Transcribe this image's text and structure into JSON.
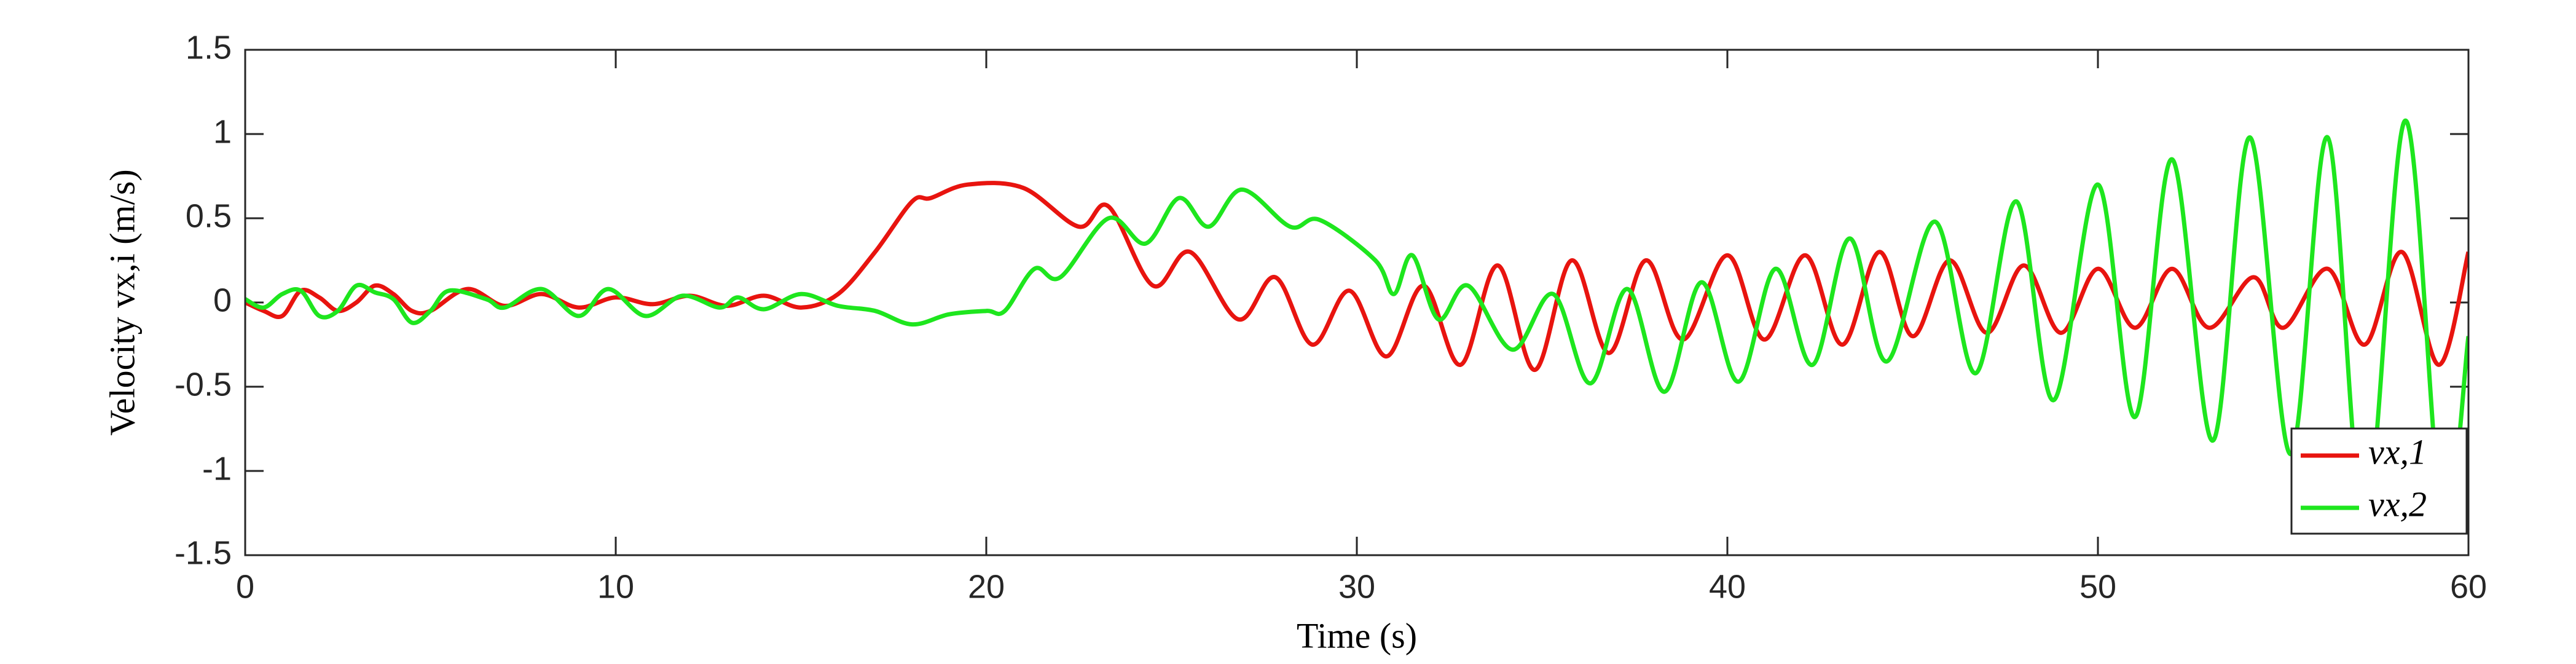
{
  "chart_data": {
    "type": "line",
    "xlabel": "Time (s)",
    "ylabel": "Velocity vx,i (m/s)",
    "xlim": [
      0,
      60
    ],
    "xticks": [
      0,
      10,
      20,
      30,
      40,
      50,
      60
    ],
    "ylim": [
      -1.5,
      1.5
    ],
    "yticks": [
      -1.5,
      -1,
      -0.5,
      0,
      0.5,
      1,
      1.5
    ],
    "legend": "lower right",
    "series": [
      {
        "name": "vx,1",
        "color": "#e8140f",
        "x": [
          0,
          0.5,
          1,
          1.5,
          2,
          2.5,
          3,
          3.5,
          4,
          4.5,
          5,
          6,
          7,
          8,
          9,
          10,
          11,
          12,
          13,
          14,
          15,
          16,
          17,
          18,
          18.5,
          19.5,
          21,
          22.5,
          23.3,
          24.5,
          25.5,
          26.8,
          27.8,
          28.8,
          29.8,
          30.8,
          31.8,
          32.8,
          33.8,
          34.8,
          35.8,
          36.8,
          37.8,
          38.8,
          40,
          41,
          42.1,
          43.1,
          44.1,
          45,
          46,
          47,
          48,
          49,
          50,
          51,
          52,
          53,
          54.2,
          55,
          56.2,
          57.2,
          58.2,
          59.2,
          60
        ],
        "values": [
          0,
          -0.05,
          -0.08,
          0.07,
          0.03,
          -0.05,
          0,
          0.1,
          0.05,
          -0.05,
          -0.05,
          0.08,
          -0.02,
          0.05,
          -0.03,
          0.03,
          -0.01,
          0.04,
          -0.02,
          0.04,
          -0.03,
          0.05,
          0.3,
          0.6,
          0.62,
          0.7,
          0.68,
          0.45,
          0.57,
          0.1,
          0.3,
          -0.1,
          0.15,
          -0.25,
          0.07,
          -0.32,
          0.1,
          -0.37,
          0.22,
          -0.4,
          0.25,
          -0.3,
          0.25,
          -0.22,
          0.28,
          -0.22,
          0.28,
          -0.25,
          0.3,
          -0.2,
          0.25,
          -0.18,
          0.22,
          -0.18,
          0.2,
          -0.15,
          0.2,
          -0.15,
          0.15,
          -0.15,
          0.2,
          -0.25,
          0.3,
          -0.37,
          0.3
        ]
      },
      {
        "name": "vx,2",
        "color": "#1ee61e",
        "x": [
          0,
          0.5,
          1,
          1.5,
          2,
          2.5,
          3,
          3.5,
          4,
          4.5,
          5,
          5.5,
          6.5,
          7,
          8,
          9,
          9.8,
          10.8,
          11.8,
          12.8,
          13.3,
          14,
          15,
          16,
          17,
          18,
          19,
          20,
          20.5,
          21.3,
          22,
          23.3,
          24.3,
          25.2,
          26,
          26.9,
          28.2,
          29,
          30.5,
          31,
          31.5,
          32.2,
          33,
          34.2,
          35.3,
          36.3,
          37.3,
          38.3,
          39.3,
          40.3,
          41.3,
          42.3,
          43.3,
          44.3,
          45.6,
          46.7,
          47.8,
          48.8,
          50,
          51,
          52,
          53.1,
          54.1,
          55.2,
          56.2,
          57.2,
          58.3,
          59.3,
          60
        ],
        "values": [
          0.02,
          -0.03,
          0.05,
          0.07,
          -0.08,
          -0.05,
          0.1,
          0.06,
          0.02,
          -0.12,
          -0.05,
          0.07,
          0.02,
          -0.03,
          0.08,
          -0.08,
          0.08,
          -0.08,
          0.04,
          -0.03,
          0.03,
          -0.04,
          0.05,
          -0.02,
          -0.05,
          -0.13,
          -0.07,
          -0.05,
          -0.05,
          0.2,
          0.15,
          0.5,
          0.35,
          0.62,
          0.45,
          0.67,
          0.45,
          0.49,
          0.25,
          0.05,
          0.28,
          -0.1,
          0.1,
          -0.28,
          0.05,
          -0.48,
          0.08,
          -0.53,
          0.12,
          -0.47,
          0.2,
          -0.37,
          0.38,
          -0.35,
          0.48,
          -0.42,
          0.6,
          -0.58,
          0.7,
          -0.68,
          0.85,
          -0.82,
          0.98,
          -0.9,
          0.98,
          -1.3,
          1.08,
          -1.3,
          -0.2
        ]
      }
    ]
  }
}
